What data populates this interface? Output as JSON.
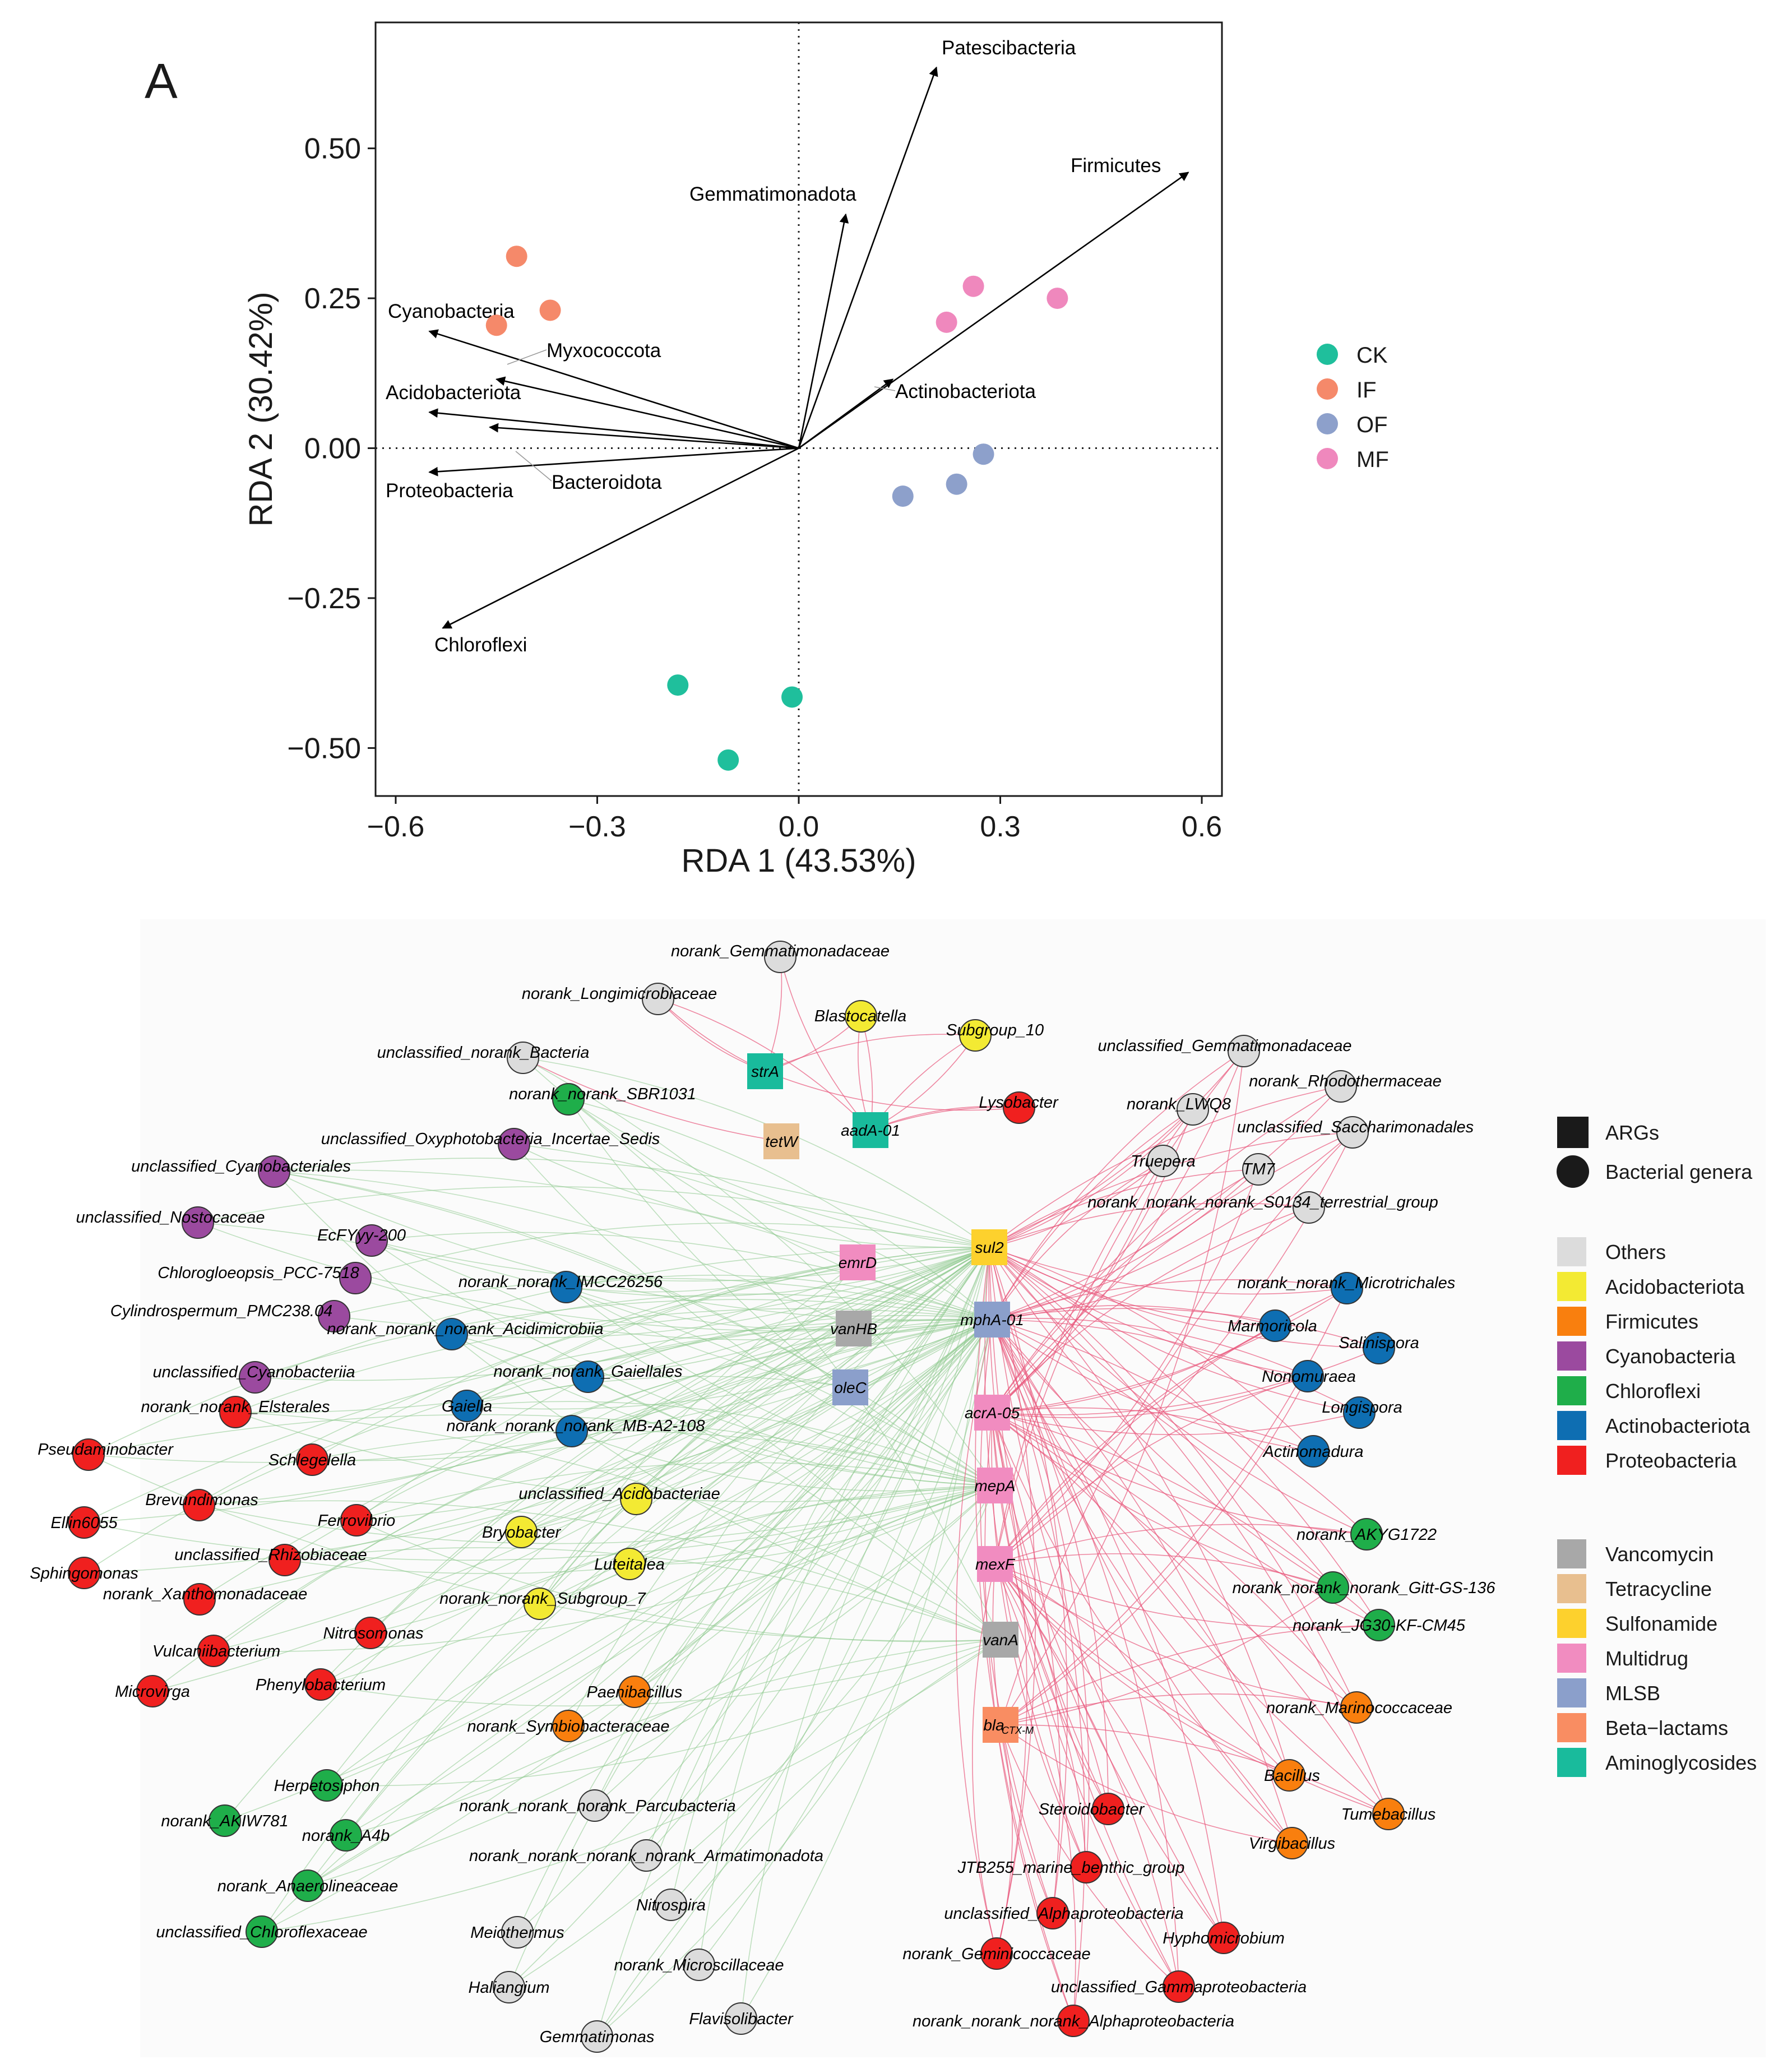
{
  "chart_data": [
    {
      "type": "scatter",
      "panel": "A",
      "xlabel": "RDA 1 (43.53%)",
      "ylabel": "RDA 2 (30.42%)",
      "xlim": [
        -0.63,
        0.63
      ],
      "ylim": [
        -0.58,
        0.71
      ],
      "x_ticks": [
        -0.6,
        -0.3,
        0.0,
        0.3,
        0.6
      ],
      "x_tick_labels": [
        "−0.6",
        "−0.3",
        "0.0",
        "0.3",
        "0.6"
      ],
      "y_ticks": [
        0.5,
        0.25,
        0.0,
        -0.25,
        -0.5
      ],
      "y_tick_labels": [
        "0.50",
        "0.25",
        "0.00",
        "−0.25",
        "−0.50"
      ],
      "grid": false,
      "reference_lines": "dotted lines at x = 0 and y = 0",
      "legend_position": "right",
      "series": [
        {
          "name": "CK",
          "color": "#1fbf9c",
          "points": [
            [
              -0.18,
              -0.395
            ],
            [
              -0.01,
              -0.415
            ],
            [
              -0.105,
              -0.52
            ]
          ]
        },
        {
          "name": "IF",
          "color": "#f5896a",
          "points": [
            [
              -0.42,
              0.32
            ],
            [
              -0.37,
              0.23
            ],
            [
              -0.45,
              0.205
            ]
          ]
        },
        {
          "name": "OF",
          "color": "#8da0cb",
          "points": [
            [
              0.275,
              -0.01
            ],
            [
              0.235,
              -0.06
            ],
            [
              0.155,
              -0.08
            ]
          ]
        },
        {
          "name": "MF",
          "color": "#ef88bd",
          "points": [
            [
              0.26,
              0.27
            ],
            [
              0.385,
              0.25
            ],
            [
              0.22,
              0.21
            ]
          ]
        }
      ],
      "arrows": [
        {
          "label": "Patescibacteria",
          "x": 0.205,
          "y": 0.635
        },
        {
          "label": "Firmicutes",
          "x": 0.58,
          "y": 0.46
        },
        {
          "label": "Gemmatimonadota",
          "x": 0.07,
          "y": 0.39
        },
        {
          "label": "Cyanobacteria",
          "x": -0.55,
          "y": 0.195
        },
        {
          "label": "Myxococcota",
          "x": -0.45,
          "y": 0.115
        },
        {
          "label": "Acidobacteriota",
          "x": -0.55,
          "y": 0.06
        },
        {
          "label": "Bacteroidota",
          "x": -0.46,
          "y": 0.035
        },
        {
          "label": "Proteobacteria",
          "x": -0.55,
          "y": -0.04
        },
        {
          "label": "Actinobacteriota",
          "x": 0.14,
          "y": 0.115
        },
        {
          "label": "Chloroflexi",
          "x": -0.53,
          "y": -0.3
        }
      ]
    },
    {
      "type": "network",
      "panel": "B",
      "shape_legend": [
        {
          "label": "ARGs",
          "shape": "square"
        },
        {
          "label": "Bacterial genera",
          "shape": "circle"
        }
      ],
      "phylum_legend": [
        {
          "label": "Others",
          "color": "#dcdcdc"
        },
        {
          "label": "Acidobacteriota",
          "color": "#f3ea33"
        },
        {
          "label": "Firmicutes",
          "color": "#f97f0e"
        },
        {
          "label": "Cyanobacteria",
          "color": "#9b4a9f"
        },
        {
          "label": "Chloroflexi",
          "color": "#1fae4a"
        },
        {
          "label": "Actinobacteriota",
          "color": "#0e6eb2"
        },
        {
          "label": "Proteobacteria",
          "color": "#f0201f"
        }
      ],
      "arg_class_legend": [
        {
          "label": "Vancomycin",
          "color": "#a8a8a8"
        },
        {
          "label": "Tetracycline",
          "color": "#e8bf8f"
        },
        {
          "label": "Sulfonamide",
          "color": "#fdd12d"
        },
        {
          "label": "Multidrug",
          "color": "#f18cc0"
        },
        {
          "label": "MLSB",
          "color": "#8b9fcb"
        },
        {
          "label": "Beta−lactams",
          "color": "#f98d62"
        },
        {
          "label": "Aminoglycosides",
          "color": "#19bb9c"
        }
      ],
      "args": [
        {
          "label": "strA",
          "class": "Aminoglycosides"
        },
        {
          "label": "tetW",
          "class": "Tetracycline"
        },
        {
          "label": "aadA-01",
          "class": "Aminoglycosides"
        },
        {
          "label": "sul2",
          "class": "Sulfonamide"
        },
        {
          "label": "emrD",
          "class": "Multidrug"
        },
        {
          "label": "vanHB",
          "class": "Vancomycin"
        },
        {
          "label": "mphA-01",
          "class": "MLSB"
        },
        {
          "label": "oleC",
          "class": "MLSB"
        },
        {
          "label": "acrA-05",
          "class": "Multidrug"
        },
        {
          "label": "mepA",
          "class": "Multidrug"
        },
        {
          "label": "mexF",
          "class": "Multidrug"
        },
        {
          "label": "vanA",
          "class": "Vancomycin"
        },
        {
          "label": "bla",
          "sub": "CTX-M",
          "class": "Beta−lactams"
        }
      ],
      "genera": [
        {
          "label": "norank_Gemmatimonadaceae",
          "phylum": "Others"
        },
        {
          "label": "norank_Longimicrobiaceae",
          "phylum": "Others"
        },
        {
          "label": "Blastocatella",
          "phylum": "Acidobacteriota"
        },
        {
          "label": "Subgroup_10",
          "phylum": "Acidobacteriota"
        },
        {
          "label": "unclassified_norank_Bacteria",
          "phylum": "Others"
        },
        {
          "label": "norank_norank_SBR1031",
          "phylum": "Chloroflexi"
        },
        {
          "label": "Lysobacter",
          "phylum": "Proteobacteria"
        },
        {
          "label": "unclassified_Oxyphotobacteria_Incertae_Sedis",
          "phylum": "Cyanobacteria"
        },
        {
          "label": "unclassified_Gemmatimonadaceae",
          "phylum": "Others"
        },
        {
          "label": "norank_Rhodothermaceae",
          "phylum": "Others"
        },
        {
          "label": "norank_LWQ8",
          "phylum": "Others"
        },
        {
          "label": "unclassified_Saccharimonadales",
          "phylum": "Others"
        },
        {
          "label": "Truepera",
          "phylum": "Others"
        },
        {
          "label": "TM7",
          "phylum": "Others"
        },
        {
          "label": "unclassified_Cyanobacteriales",
          "phylum": "Cyanobacteria"
        },
        {
          "label": "norank_norank_norank_S0134_terrestrial_group",
          "phylum": "Others"
        },
        {
          "label": "unclassified_Nostocaceae",
          "phylum": "Cyanobacteria"
        },
        {
          "label": "EcFYyy-200",
          "phylum": "Cyanobacteria"
        },
        {
          "label": "Chlorogloeopsis_PCC-7518",
          "phylum": "Cyanobacteria"
        },
        {
          "label": "norank_norank_IMCC26256",
          "phylum": "Actinobacteriota"
        },
        {
          "label": "norank_norank_Microtrichales",
          "phylum": "Actinobacteriota"
        },
        {
          "label": "Cylindrospermum_PMC238.04",
          "phylum": "Cyanobacteria"
        },
        {
          "label": "Marmoricola",
          "phylum": "Actinobacteriota"
        },
        {
          "label": "norank_norank_norank_Acidimicrobiia",
          "phylum": "Actinobacteriota"
        },
        {
          "label": "Salinispora",
          "phylum": "Actinobacteriota"
        },
        {
          "label": "norank_norank_Gaiellales",
          "phylum": "Actinobacteriota"
        },
        {
          "label": "Nonomuraea",
          "phylum": "Actinobacteriota"
        },
        {
          "label": "unclassified_Cyanobacteriia",
          "phylum": "Cyanobacteria"
        },
        {
          "label": "Gaiella",
          "phylum": "Actinobacteriota"
        },
        {
          "label": "norank_norank_Elsterales",
          "phylum": "Proteobacteria"
        },
        {
          "label": "Longispora",
          "phylum": "Actinobacteriota"
        },
        {
          "label": "norank_norank_norank_MB-A2-108",
          "phylum": "Actinobacteriota"
        },
        {
          "label": "Pseudaminobacter",
          "phylum": "Proteobacteria"
        },
        {
          "label": "Actinomadura",
          "phylum": "Actinobacteriota"
        },
        {
          "label": "Schlegelella",
          "phylum": "Proteobacteria"
        },
        {
          "label": "Brevundimonas",
          "phylum": "Proteobacteria"
        },
        {
          "label": "unclassified_Acidobacteriae",
          "phylum": "Acidobacteriota"
        },
        {
          "label": "Ellin6055",
          "phylum": "Proteobacteria"
        },
        {
          "label": "Ferrovibrio",
          "phylum": "Proteobacteria"
        },
        {
          "label": "Bryobacter",
          "phylum": "Acidobacteriota"
        },
        {
          "label": "norank_AKYG1722",
          "phylum": "Chloroflexi"
        },
        {
          "label": "unclassified_Rhizobiaceae",
          "phylum": "Proteobacteria"
        },
        {
          "label": "Sphingomonas",
          "phylum": "Proteobacteria"
        },
        {
          "label": "Luteitalea",
          "phylum": "Acidobacteriota"
        },
        {
          "label": "norank_norank_norank_Gitt-GS-136",
          "phylum": "Chloroflexi"
        },
        {
          "label": "norank_Xanthomonadaceae",
          "phylum": "Proteobacteria"
        },
        {
          "label": "norank_norank_Subgroup_7",
          "phylum": "Acidobacteriota"
        },
        {
          "label": "norank_JG30-KF-CM45",
          "phylum": "Chloroflexi"
        },
        {
          "label": "Nitrosomonas",
          "phylum": "Proteobacteria"
        },
        {
          "label": "Vulcaniibacterium",
          "phylum": "Proteobacteria"
        },
        {
          "label": "Phenylobacterium",
          "phylum": "Proteobacteria"
        },
        {
          "label": "Microvirga",
          "phylum": "Proteobacteria"
        },
        {
          "label": "Paenibacillus",
          "phylum": "Firmicutes"
        },
        {
          "label": "norank_Marinococcaceae",
          "phylum": "Firmicutes"
        },
        {
          "label": "norank_Symbiobacteraceae",
          "phylum": "Firmicutes"
        },
        {
          "label": "Bacillus",
          "phylum": "Firmicutes"
        },
        {
          "label": "Herpetosiphon",
          "phylum": "Chloroflexi"
        },
        {
          "label": "norank_norank_norank_Parcubacteria",
          "phylum": "Others"
        },
        {
          "label": "Steroidobacter",
          "phylum": "Proteobacteria"
        },
        {
          "label": "Tumebacillus",
          "phylum": "Firmicutes"
        },
        {
          "label": "norank_AKIW781",
          "phylum": "Chloroflexi"
        },
        {
          "label": "norank_A4b",
          "phylum": "Chloroflexi"
        },
        {
          "label": "Virgibacillus",
          "phylum": "Firmicutes"
        },
        {
          "label": "norank_norank_norank_norank_Armatimonadota",
          "phylum": "Others"
        },
        {
          "label": "JTB255_marine_benthic_group",
          "phylum": "Proteobacteria"
        },
        {
          "label": "norank_Anaerolineaceae",
          "phylum": "Chloroflexi"
        },
        {
          "label": "Nitrospira",
          "phylum": "Others"
        },
        {
          "label": "unclassified_Alphaproteobacteria",
          "phylum": "Proteobacteria"
        },
        {
          "label": "unclassified_Chloroflexaceae",
          "phylum": "Chloroflexi"
        },
        {
          "label": "Meiothermus",
          "phylum": "Others"
        },
        {
          "label": "Hyphomicrobium",
          "phylum": "Proteobacteria"
        },
        {
          "label": "norank_Geminicoccaceae",
          "phylum": "Proteobacteria"
        },
        {
          "label": "norank_Microscillaceae",
          "phylum": "Others"
        },
        {
          "label": "Haliangium",
          "phylum": "Others"
        },
        {
          "label": "unclassified_Gammaproteobacteria",
          "phylum": "Proteobacteria"
        },
        {
          "label": "Flavisolibacter",
          "phylum": "Others"
        },
        {
          "label": "norank_norank_norank_Alphaproteobacteria",
          "phylum": "Proteobacteria"
        },
        {
          "label": "Gemmatimonas",
          "phylum": "Others"
        }
      ]
    }
  ],
  "panel_labels": {
    "a": "A",
    "b": "B"
  }
}
